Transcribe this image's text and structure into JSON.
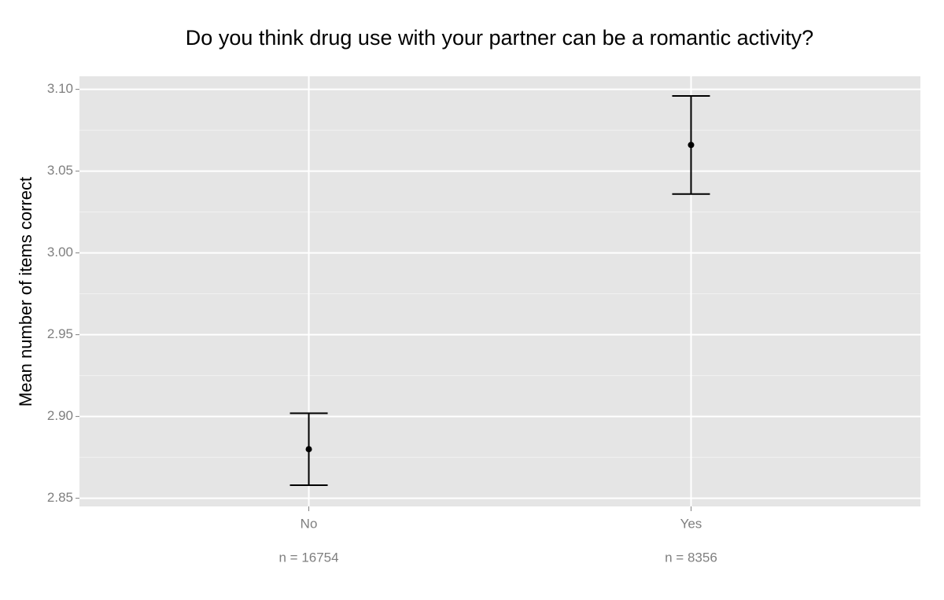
{
  "chart_data": {
    "type": "errorbar",
    "title": "Do you think drug use with your partner can be a romantic activity?",
    "y_label": "Mean number of items correct",
    "categories": [
      "No",
      "Yes"
    ],
    "sample_labels": [
      "n = 16754",
      "n = 8356"
    ],
    "values": [
      2.88,
      3.066
    ],
    "error": [
      0.022,
      0.03
    ],
    "color": "#000000",
    "ylim": [
      2.845,
      3.108
    ],
    "yticks": [
      2.85,
      {
        "value": 2.9,
        "label": "2.90"
      },
      2.95,
      {
        "value": 3.0,
        "label": "3.00"
      },
      3.05,
      {
        "value": 3.1,
        "label": "3.10"
      }
    ],
    "grid": true
  }
}
